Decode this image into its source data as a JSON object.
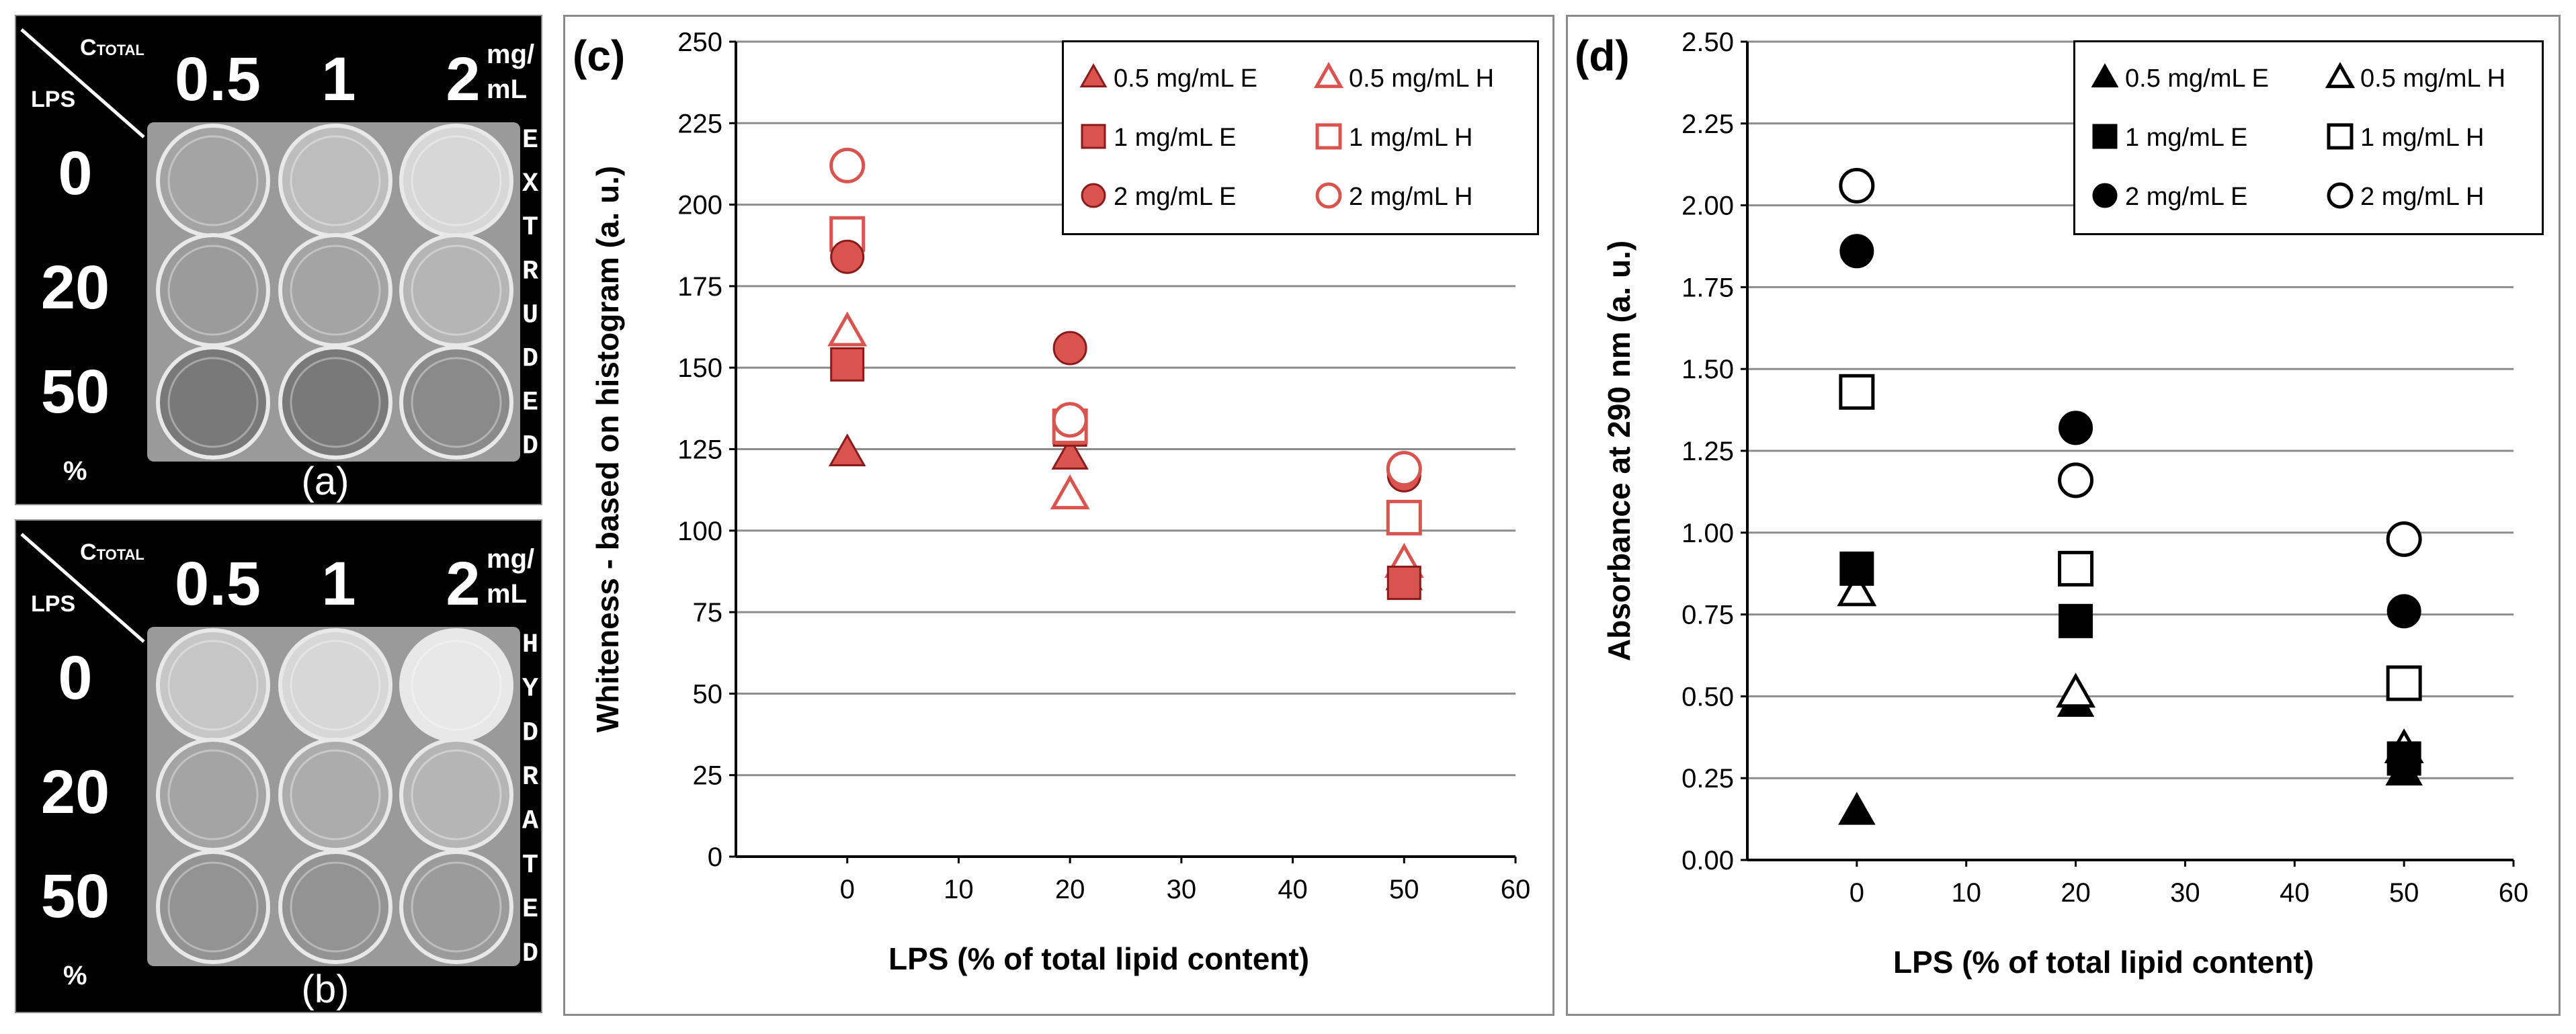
{
  "photos": [
    {
      "id": "a",
      "panel_label": "(a)",
      "corner_top": "C",
      "corner_top_sub": "TOTAL",
      "corner_left": "LPS",
      "col_labels": [
        "0.5",
        "1",
        "2"
      ],
      "unit_line1": "mg/",
      "unit_line2": "mL",
      "row_labels": [
        "0",
        "20",
        "50"
      ],
      "percent": "%",
      "side_letters": [
        "E",
        "X",
        "T",
        "R",
        "U",
        "D",
        "E",
        "D"
      ],
      "well_brightness": [
        [
          0.55,
          0.7,
          0.85
        ],
        [
          0.5,
          0.55,
          0.65
        ],
        [
          0.3,
          0.3,
          0.4
        ]
      ]
    },
    {
      "id": "b",
      "panel_label": "(b)",
      "corner_top": "C",
      "corner_top_sub": "TOTAL",
      "corner_left": "LPS",
      "col_labels": [
        "0.5",
        "1",
        "2"
      ],
      "unit_line1": "mg/",
      "unit_line2": "mL",
      "row_labels": [
        "0",
        "20",
        "50"
      ],
      "percent": "%",
      "side_letters": [
        "H",
        "Y",
        "D",
        "R",
        "A",
        "T",
        "E",
        "D"
      ],
      "well_brightness": [
        [
          0.75,
          0.85,
          0.95
        ],
        [
          0.55,
          0.6,
          0.65
        ],
        [
          0.45,
          0.45,
          0.5
        ]
      ]
    }
  ],
  "chart_data": [
    {
      "id": "c",
      "type": "scatter",
      "panel_label": "(c)",
      "title": "",
      "xlabel": "LPS (% of total lipid content)",
      "ylabel": "Whiteness - based on histogram (a. u.)",
      "xlim": [
        -10,
        60
      ],
      "ylim": [
        0,
        250
      ],
      "xticks": [
        "0",
        "10",
        "20",
        "30",
        "40",
        "50",
        "60"
      ],
      "xtick_values": [
        0,
        10,
        20,
        30,
        40,
        50,
        60
      ],
      "yticks": [
        "0",
        "25",
        "50",
        "75",
        "100",
        "125",
        "150",
        "175",
        "200",
        "225",
        "250"
      ],
      "ytick_values": [
        0,
        25,
        50,
        75,
        100,
        125,
        150,
        175,
        200,
        225,
        250
      ],
      "grid": "horizontal",
      "legend_position": "top-right",
      "color": "#d9534f",
      "edge": "#8b1a1a",
      "series": [
        {
          "name": "0.5 mg/mL E",
          "marker": "triangle",
          "filled": true,
          "x": [
            0,
            20,
            50
          ],
          "y": [
            124,
            123,
            86
          ]
        },
        {
          "name": "0.5 mg/mL H",
          "marker": "triangle",
          "filled": false,
          "x": [
            0,
            20,
            50
          ],
          "y": [
            161,
            111,
            90
          ]
        },
        {
          "name": "1 mg/mL E",
          "marker": "square",
          "filled": true,
          "x": [
            0,
            20,
            50
          ],
          "y": [
            151,
            131,
            84
          ]
        },
        {
          "name": "1 mg/mL H",
          "marker": "square",
          "filled": false,
          "x": [
            0,
            20,
            50
          ],
          "y": [
            191,
            132,
            104
          ]
        },
        {
          "name": "2 mg/mL E",
          "marker": "circle",
          "filled": true,
          "x": [
            0,
            20,
            50
          ],
          "y": [
            184,
            156,
            117
          ]
        },
        {
          "name": "2 mg/mL H",
          "marker": "circle",
          "filled": false,
          "x": [
            0,
            20,
            50
          ],
          "y": [
            212,
            134,
            119
          ]
        }
      ]
    },
    {
      "id": "d",
      "type": "scatter",
      "panel_label": "(d)",
      "title": "",
      "xlabel": "LPS (% of total lipid content)",
      "ylabel": "Absorbance at 290 nm (a. u.)",
      "xlim": [
        -10,
        60
      ],
      "ylim": [
        0,
        2.5
      ],
      "xticks": [
        "0",
        "10",
        "20",
        "30",
        "40",
        "50",
        "60"
      ],
      "xtick_values": [
        0,
        10,
        20,
        30,
        40,
        50,
        60
      ],
      "yticks": [
        "0.00",
        "0.25",
        "0.50",
        "0.75",
        "1.00",
        "1.25",
        "1.50",
        "1.75",
        "2.00",
        "2.25",
        "2.50"
      ],
      "ytick_values": [
        0,
        0.25,
        0.5,
        0.75,
        1.0,
        1.25,
        1.5,
        1.75,
        2.0,
        2.25,
        2.5
      ],
      "grid": "horizontal",
      "legend_position": "top-right",
      "color": "#000000",
      "edge": "#000000",
      "series": [
        {
          "name": "0.5 mg/mL E",
          "marker": "triangle",
          "filled": true,
          "x": [
            0,
            20,
            50
          ],
          "y": [
            0.15,
            0.48,
            0.27
          ]
        },
        {
          "name": "0.5 mg/mL H",
          "marker": "triangle",
          "filled": false,
          "x": [
            0,
            20,
            50
          ],
          "y": [
            0.82,
            0.51,
            0.34
          ]
        },
        {
          "name": "1 mg/mL E",
          "marker": "square",
          "filled": true,
          "x": [
            0,
            20,
            50
          ],
          "y": [
            0.89,
            0.73,
            0.31
          ]
        },
        {
          "name": "1 mg/mL H",
          "marker": "square",
          "filled": false,
          "x": [
            0,
            20,
            50
          ],
          "y": [
            1.43,
            0.89,
            0.54
          ]
        },
        {
          "name": "2 mg/mL E",
          "marker": "circle",
          "filled": true,
          "x": [
            0,
            20,
            50
          ],
          "y": [
            1.86,
            1.32,
            0.76
          ]
        },
        {
          "name": "2 mg/mL H",
          "marker": "circle",
          "filled": false,
          "x": [
            0,
            20,
            50
          ],
          "y": [
            2.06,
            1.16,
            0.98
          ]
        }
      ]
    }
  ]
}
